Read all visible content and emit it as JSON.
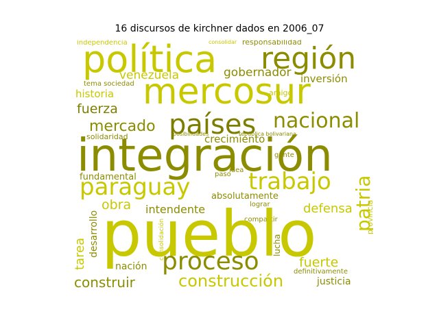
{
  "title": "16 discursos de kirchner dados en 2006_07",
  "colors": {
    "olive": "#8c8c00",
    "olive_dark": "#7d7d00",
    "yellow": "#c8c800",
    "yellow_bright": "#d6d600",
    "khaki": "#a8a800"
  },
  "words": {
    "pueblo": "pueblo",
    "integracion": "integración",
    "mercosur": "mercosur",
    "politica": "política",
    "region": "región",
    "paises": "países",
    "proceso": "proceso",
    "paraguay": "paraguay",
    "trabajo": "trabajo",
    "nacional": "nacional",
    "mercado": "mercado",
    "construccion": "construcción",
    "construir": "construir",
    "patria": "patria",
    "fuerza": "fuerza",
    "venezuela": "venezuela",
    "gobernador": "gobernador",
    "inversion": "inversión",
    "historia": "historia",
    "crecimiento": "crecimiento",
    "fundamental": "fundamental",
    "absolutamente": "absolutamente",
    "intendente": "intendente",
    "obra": "obra",
    "defensa": "defensa",
    "fuerte": "fuerte",
    "justicia": "justicia",
    "tarea": "tarea",
    "desarrollo": "desarrollo",
    "nacion": "nación",
    "independencia": "independencia",
    "responsabilidad": "responsabilidad",
    "tema": "tema sociedad",
    "solidaridad": "solidaridad",
    "idea": "idea",
    "gente": "gente",
    "lograr": "lograr",
    "lucha": "lucha",
    "provincia": "provincia",
    "definitivamente": "definitivamente",
    "paso": "paso",
    "amigo": "amigo",
    "consolidar": "consolidar",
    "posibilidades": "posibilidades",
    "republica": "república bolivariana",
    "compartir": "compartir",
    "consolidacion": "consolidación"
  }
}
